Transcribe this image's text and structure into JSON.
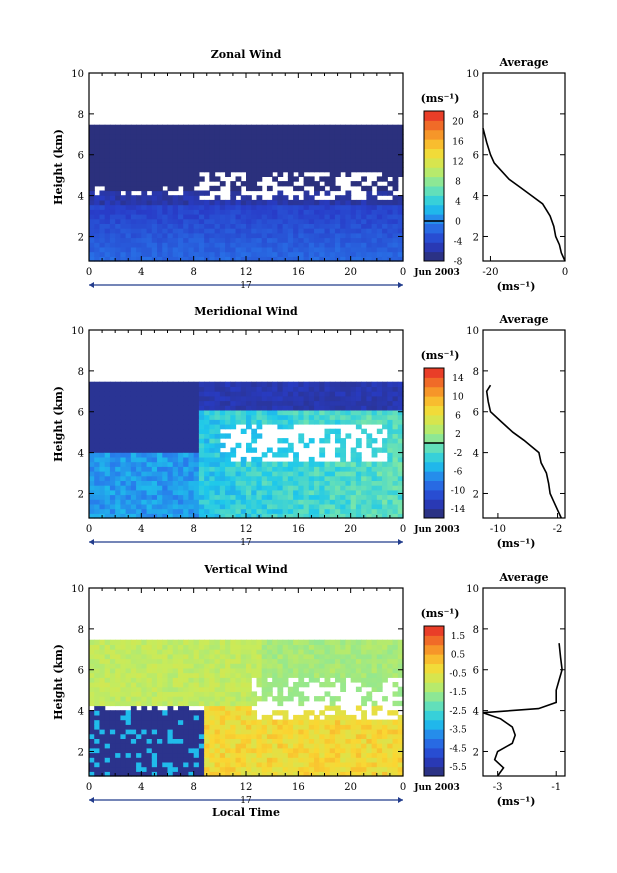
{
  "chart_data": [
    {
      "type": "heatmap",
      "title": "Zonal Wind",
      "xlabel": "",
      "ylabel": "Height (km)",
      "xlim": [
        0,
        24
      ],
      "ylim": [
        0.8,
        10
      ],
      "x_ticks": [
        "0",
        "4",
        "8",
        "12",
        "16",
        "20",
        "0"
      ],
      "y_ticks": [
        "2",
        "4",
        "6",
        "8",
        "10"
      ],
      "day_label": "17",
      "date_label": "Jun 2003",
      "colorbar": {
        "unit": "(ms⁻¹)",
        "range": [
          -8,
          22
        ],
        "ticks": [
          "-8",
          "-4",
          "0",
          "4",
          "8",
          "12",
          "16",
          "20"
        ],
        "zero_at": 0
      },
      "average": {
        "title": "Average",
        "xlabel": "(ms⁻¹)",
        "xlim": [
          -22,
          0
        ],
        "x_ticks": [
          "-20",
          "0"
        ],
        "y_ticks": [
          "2",
          "4",
          "6",
          "8",
          "10"
        ],
        "profile": [
          {
            "h": 0.8,
            "v": 0
          },
          {
            "h": 1.2,
            "v": -1
          },
          {
            "h": 1.6,
            "v": -1.5
          },
          {
            "h": 2.0,
            "v": -2.5
          },
          {
            "h": 2.5,
            "v": -3
          },
          {
            "h": 3.0,
            "v": -4
          },
          {
            "h": 3.3,
            "v": -5
          },
          {
            "h": 3.6,
            "v": -6
          },
          {
            "h": 4.0,
            "v": -9
          },
          {
            "h": 4.4,
            "v": -12
          },
          {
            "h": 4.8,
            "v": -15
          },
          {
            "h": 5.2,
            "v": -17
          },
          {
            "h": 5.6,
            "v": -19
          },
          {
            "h": 6.0,
            "v": -20
          },
          {
            "h": 6.6,
            "v": -21
          },
          {
            "h": 7.3,
            "v": -22
          }
        ]
      }
    },
    {
      "type": "heatmap",
      "title": "Meridional Wind",
      "xlabel": "",
      "ylabel": "Height (km)",
      "xlim": [
        0,
        24
      ],
      "ylim": [
        0.8,
        10
      ],
      "x_ticks": [
        "0",
        "4",
        "8",
        "12",
        "16",
        "20",
        "0"
      ],
      "y_ticks": [
        "2",
        "4",
        "6",
        "8",
        "10"
      ],
      "day_label": "17",
      "date_label": "Jun 2003",
      "colorbar": {
        "unit": "(ms⁻¹)",
        "range": [
          -16,
          16
        ],
        "ticks": [
          "-14",
          "-10",
          "-6",
          "-2",
          "2",
          "6",
          "10",
          "14"
        ],
        "zero_at": 0
      },
      "average": {
        "title": "Average",
        "xlabel": "(ms⁻¹)",
        "xlim": [
          -12,
          -1
        ],
        "x_ticks": [
          "-10",
          "-2"
        ],
        "y_ticks": [
          "2",
          "4",
          "6",
          "8",
          "10"
        ],
        "profile": [
          {
            "h": 0.8,
            "v": -1.5
          },
          {
            "h": 1.2,
            "v": -2
          },
          {
            "h": 1.6,
            "v": -2.5
          },
          {
            "h": 2.0,
            "v": -3
          },
          {
            "h": 2.5,
            "v": -3.2
          },
          {
            "h": 3.0,
            "v": -3.5
          },
          {
            "h": 3.5,
            "v": -4.2
          },
          {
            "h": 4.0,
            "v": -4.5
          },
          {
            "h": 4.3,
            "v": -5.5
          },
          {
            "h": 4.6,
            "v": -6.5
          },
          {
            "h": 5.0,
            "v": -8
          },
          {
            "h": 5.5,
            "v": -9.5
          },
          {
            "h": 6.0,
            "v": -11
          },
          {
            "h": 6.5,
            "v": -11.3
          },
          {
            "h": 7.0,
            "v": -11.5
          },
          {
            "h": 7.3,
            "v": -11
          }
        ]
      }
    },
    {
      "type": "heatmap",
      "title": "Vertical Wind",
      "xlabel": "Local Time",
      "ylabel": "Height (km)",
      "xlim": [
        0,
        24
      ],
      "ylim": [
        0.8,
        10
      ],
      "x_ticks": [
        "0",
        "4",
        "8",
        "12",
        "16",
        "20",
        "0"
      ],
      "y_ticks": [
        "2",
        "4",
        "6",
        "8",
        "10"
      ],
      "day_label": "17",
      "date_label": "Jun 2003",
      "colorbar": {
        "unit": "(ms⁻¹)",
        "range": [
          -6,
          2
        ],
        "ticks": [
          "-5.5",
          "-4.5",
          "-3.5",
          "-2.5",
          "-1.5",
          "-0.5",
          "0.5",
          "1.5"
        ],
        "zero_at": null
      },
      "average": {
        "title": "Average",
        "xlabel": "(ms⁻¹)",
        "xlim": [
          -3.5,
          -0.7
        ],
        "x_ticks": [
          "-3",
          "-1"
        ],
        "y_ticks": [
          "2",
          "4",
          "6",
          "8",
          "10"
        ],
        "profile": [
          {
            "h": 0.8,
            "v": -3
          },
          {
            "h": 1.2,
            "v": -2.8
          },
          {
            "h": 1.6,
            "v": -3.1
          },
          {
            "h": 2.0,
            "v": -3.0
          },
          {
            "h": 2.4,
            "v": -2.5
          },
          {
            "h": 2.8,
            "v": -2.4
          },
          {
            "h": 3.2,
            "v": -2.5
          },
          {
            "h": 3.6,
            "v": -2.9
          },
          {
            "h": 3.9,
            "v": -3.5
          },
          {
            "h": 4.1,
            "v": -1.6
          },
          {
            "h": 4.4,
            "v": -1.0
          },
          {
            "h": 5.0,
            "v": -1.0
          },
          {
            "h": 5.5,
            "v": -0.9
          },
          {
            "h": 6.0,
            "v": -0.8
          },
          {
            "h": 6.6,
            "v": -0.85
          },
          {
            "h": 7.3,
            "v": -0.9
          }
        ]
      }
    }
  ]
}
